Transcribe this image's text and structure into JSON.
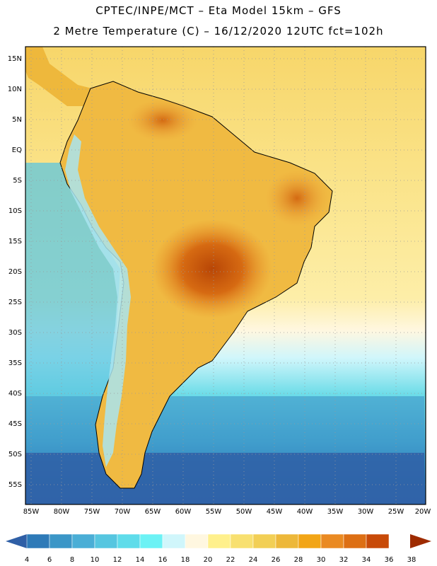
{
  "header": {
    "line1": "CPTEC/INPE/MCT –  Eta Model 15km – GFS",
    "line2": "2 Metre Temperature (C) – 16/12/2020 12UTC fct=102h"
  },
  "axes": {
    "lat_labels": [
      "15N",
      "10N",
      "5N",
      "EQ",
      "5S",
      "10S",
      "15S",
      "20S",
      "25S",
      "30S",
      "35S",
      "40S",
      "45S",
      "50S",
      "55S"
    ],
    "lon_labels": [
      "85W",
      "80W",
      "75W",
      "70W",
      "65W",
      "60W",
      "55W",
      "50W",
      "45W",
      "40W",
      "35W",
      "30W",
      "25W",
      "20W"
    ]
  },
  "colorbar": {
    "levels": [
      "4",
      "6",
      "8",
      "10",
      "12",
      "14",
      "16",
      "18",
      "20",
      "22",
      "24",
      "26",
      "28",
      "30",
      "32",
      "34",
      "36",
      "38"
    ],
    "colors": [
      "#2f5fa6",
      "#2e7ab8",
      "#3b96c7",
      "#4aaed6",
      "#56c6e0",
      "#5fdcea",
      "#6cf2f5",
      "#d0f6fb",
      "#fff7e0",
      "#fff08c",
      "#f8e070",
      "#f2cf55",
      "#edb83a",
      "#f2a516",
      "#ea8a22",
      "#dd6f14",
      "#c84a08",
      "#9e2b00"
    ]
  }
}
